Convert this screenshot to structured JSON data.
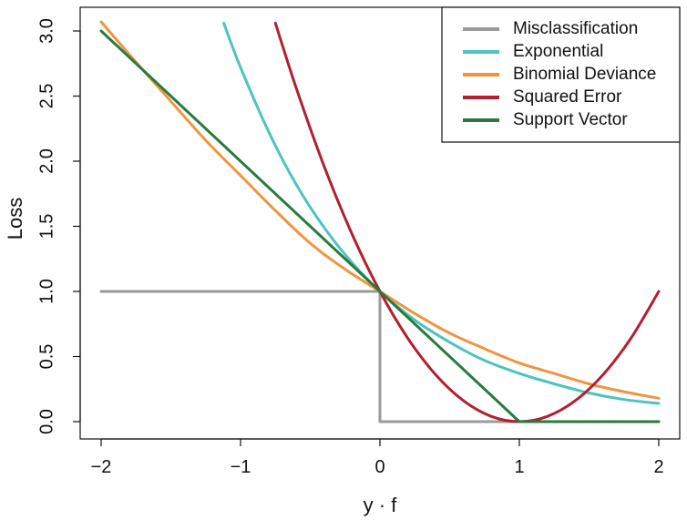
{
  "chart_data": {
    "type": "line",
    "xlabel": "y · f",
    "ylabel": "Loss",
    "xlim": [
      -2,
      2
    ],
    "ylim": [
      0,
      3
    ],
    "x_ticks": [
      {
        "value": -2,
        "label": "−2"
      },
      {
        "value": -1,
        "label": "−1"
      },
      {
        "value": 0,
        "label": "0"
      },
      {
        "value": 1,
        "label": "1"
      },
      {
        "value": 2,
        "label": "2"
      }
    ],
    "y_ticks": [
      {
        "value": 0,
        "label": "0.0"
      },
      {
        "value": 0.5,
        "label": "0.5"
      },
      {
        "value": 1,
        "label": "1.0"
      },
      {
        "value": 1.5,
        "label": "1.5"
      },
      {
        "value": 2,
        "label": "2.0"
      },
      {
        "value": 2.5,
        "label": "2.5"
      },
      {
        "value": 3,
        "label": "3.0"
      }
    ],
    "grid": false,
    "legend_position": "top-right",
    "series": [
      {
        "name": "Misclassification",
        "color": "#9a9a9a",
        "x": [
          -2,
          0,
          0,
          2
        ],
        "y": [
          1,
          1,
          0,
          0
        ]
      },
      {
        "name": "Exponential",
        "color": "#4ec3c1",
        "x": [
          -1.12,
          -1.0,
          -0.8,
          -0.6,
          -0.4,
          -0.2,
          0,
          0.25,
          0.5,
          0.75,
          1.0,
          1.25,
          1.5,
          1.75,
          2.0
        ],
        "y": [
          3.06,
          2.72,
          2.23,
          1.82,
          1.49,
          1.22,
          1.0,
          0.78,
          0.61,
          0.47,
          0.37,
          0.29,
          0.22,
          0.17,
          0.14
        ]
      },
      {
        "name": "Binomial Deviance",
        "color": "#f0953f",
        "x": [
          -2.0,
          -1.75,
          -1.5,
          -1.25,
          -1.0,
          -0.75,
          -0.5,
          -0.25,
          0,
          0.25,
          0.5,
          0.75,
          1.0,
          1.25,
          1.5,
          1.75,
          2.0
        ],
        "y": [
          3.07,
          2.76,
          2.46,
          2.16,
          1.89,
          1.62,
          1.37,
          1.17,
          1.0,
          0.83,
          0.68,
          0.56,
          0.45,
          0.37,
          0.29,
          0.23,
          0.18
        ]
      },
      {
        "name": "Squared Error",
        "color": "#b22030",
        "x": [
          -0.75,
          -0.6,
          -0.4,
          -0.2,
          0,
          0.2,
          0.4,
          0.6,
          0.8,
          1.0,
          1.2,
          1.4,
          1.6,
          1.8,
          2.0
        ],
        "y": [
          3.06,
          2.56,
          1.96,
          1.44,
          1.0,
          0.64,
          0.36,
          0.16,
          0.04,
          0.0,
          0.04,
          0.16,
          0.36,
          0.64,
          1.0
        ]
      },
      {
        "name": "Support Vector",
        "color": "#2a7a3e",
        "x": [
          -2,
          1,
          2
        ],
        "y": [
          3,
          0,
          0
        ]
      }
    ]
  }
}
